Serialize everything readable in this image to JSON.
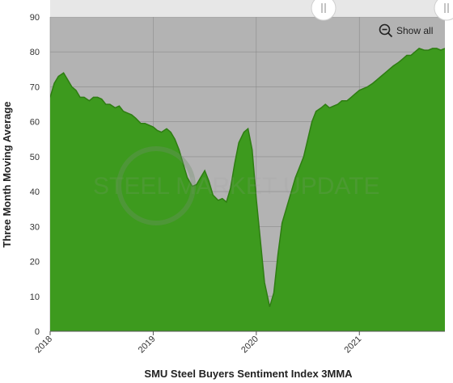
{
  "chart_data": {
    "type": "area",
    "title": "",
    "xlabel": "SMU Steel Buyers Sentiment Index 3MMA",
    "ylabel": "Three Month Moving Average",
    "ylim": [
      0,
      90
    ],
    "yticks": [
      0,
      10,
      20,
      30,
      40,
      50,
      60,
      70,
      80,
      90
    ],
    "xticks": [
      "2018",
      "2019",
      "2020",
      "2021"
    ],
    "xlim": [
      2018.0,
      2021.83
    ],
    "grid": true,
    "legend": "none",
    "watermark": "STEEL MARKET UPDATE",
    "colors": {
      "area": "#3d9a1e",
      "line": "#2e7d12",
      "plot_bg": "#b3b3b3"
    },
    "series": [
      {
        "x": [
          2018.0,
          2018.04,
          2018.08,
          2018.13,
          2018.17,
          2018.21,
          2018.25,
          2018.29,
          2018.33,
          2018.38,
          2018.42,
          2018.46,
          2018.5,
          2018.54,
          2018.58,
          2018.63,
          2018.67,
          2018.71,
          2018.75,
          2018.79,
          2018.83,
          2018.88,
          2018.92,
          2018.96,
          2019.0,
          2019.04,
          2019.08,
          2019.13,
          2019.17,
          2019.21,
          2019.25,
          2019.29,
          2019.33,
          2019.38,
          2019.42,
          2019.46,
          2019.5,
          2019.54,
          2019.58,
          2019.63,
          2019.67,
          2019.71,
          2019.75,
          2019.79,
          2019.83,
          2019.88,
          2019.92,
          2019.96,
          2020.0,
          2020.04,
          2020.08,
          2020.13,
          2020.17,
          2020.21,
          2020.25,
          2020.29,
          2020.33,
          2020.38,
          2020.42,
          2020.46,
          2020.5,
          2020.54,
          2020.58,
          2020.63,
          2020.67,
          2020.71,
          2020.75,
          2020.79,
          2020.83,
          2020.88,
          2020.92,
          2020.96,
          2021.0,
          2021.04,
          2021.08,
          2021.13,
          2021.17,
          2021.21,
          2021.25,
          2021.29,
          2021.33,
          2021.38,
          2021.42,
          2021.46,
          2021.5,
          2021.54,
          2021.58,
          2021.63,
          2021.67,
          2021.71,
          2021.75,
          2021.79,
          2021.83
        ],
        "values": [
          67,
          71,
          73,
          74,
          72,
          70,
          69,
          67,
          67,
          66,
          67,
          67,
          66.5,
          65,
          65,
          64,
          64.5,
          63,
          62.5,
          62,
          61,
          59.5,
          59.5,
          59,
          58.5,
          57.5,
          57,
          58,
          57,
          55,
          52,
          48,
          44,
          41.5,
          42,
          44,
          46,
          43,
          39,
          37.5,
          38,
          37,
          41,
          48,
          54,
          57,
          58,
          52,
          38,
          26,
          14,
          7,
          11,
          22,
          31,
          35,
          39,
          44,
          47,
          50,
          55,
          60,
          63,
          64,
          65,
          64,
          64.5,
          65,
          66,
          66,
          67,
          68,
          69,
          69.5,
          70,
          71,
          72,
          73,
          74,
          75,
          76,
          77,
          78,
          79,
          79,
          80,
          81,
          80.5,
          80.5,
          81,
          81,
          80.5,
          81
        ]
      }
    ]
  },
  "controls": {
    "show_all_label": "Show all"
  }
}
